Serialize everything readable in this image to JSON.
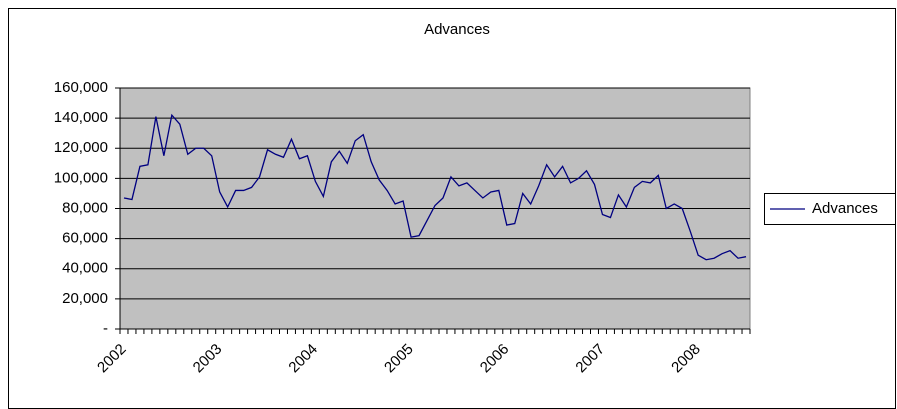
{
  "chart_data": {
    "type": "line",
    "title": "Advances",
    "categories": [
      "2002",
      null,
      null,
      null,
      null,
      null,
      null,
      null,
      null,
      null,
      null,
      null,
      "2003",
      null,
      null,
      null,
      null,
      null,
      null,
      null,
      null,
      null,
      null,
      null,
      "2004",
      null,
      null,
      null,
      null,
      null,
      null,
      null,
      null,
      null,
      null,
      null,
      "2005",
      null,
      null,
      null,
      null,
      null,
      null,
      null,
      null,
      null,
      null,
      null,
      "2006",
      null,
      null,
      null,
      null,
      null,
      null,
      null,
      null,
      null,
      null,
      null,
      "2007",
      null,
      null,
      null,
      null,
      null,
      null,
      null,
      null,
      null,
      null,
      null,
      "2008",
      null,
      null,
      null,
      null,
      null,
      null
    ],
    "series": [
      {
        "name": "Advances",
        "color": "#000080",
        "values": [
          87000,
          86000,
          108000,
          109000,
          141000,
          115000,
          142000,
          136000,
          116000,
          120000,
          120000,
          115000,
          91000,
          81000,
          92000,
          92000,
          94000,
          101000,
          119000,
          116000,
          114000,
          126000,
          113000,
          115000,
          98000,
          88000,
          111000,
          118000,
          110000,
          125000,
          129000,
          111000,
          99000,
          92000,
          83000,
          85000,
          61000,
          62000,
          72000,
          82000,
          87000,
          101000,
          95000,
          97000,
          92000,
          87000,
          91000,
          92000,
          69000,
          70000,
          90000,
          83000,
          95000,
          109000,
          101000,
          108000,
          97000,
          100000,
          105000,
          96000,
          76000,
          74000,
          89000,
          81000,
          94000,
          98000,
          97000,
          102000,
          80000,
          83000,
          80000,
          65000,
          49000,
          46000,
          47000,
          50000,
          52000,
          47000,
          48000
        ]
      }
    ],
    "ylim": [
      0,
      160000
    ],
    "yticks": [
      {
        "value": 0,
        "label": "-"
      },
      {
        "value": 20000,
        "label": "20,000"
      },
      {
        "value": 40000,
        "label": "40,000"
      },
      {
        "value": 60000,
        "label": "60,000"
      },
      {
        "value": 80000,
        "label": "80,000"
      },
      {
        "value": 100000,
        "label": "100,000"
      },
      {
        "value": 120000,
        "label": "120,000"
      },
      {
        "value": 140000,
        "label": "140,000"
      },
      {
        "value": 160000,
        "label": "160,000"
      }
    ],
    "grid": true,
    "plot_background": "#c0c0c0",
    "legend": "right"
  }
}
